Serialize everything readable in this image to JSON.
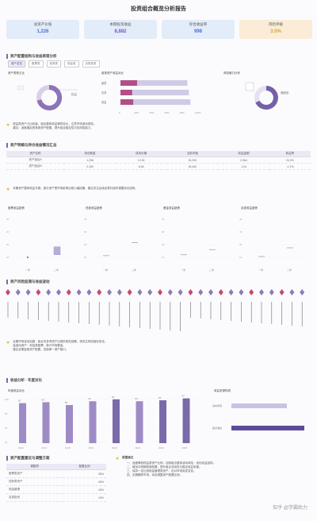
{
  "page": {
    "title": "投资组合概览分析报告"
  },
  "kpis": [
    {
      "label": "总资产价值",
      "value": "1,226",
      "color": "#4a6fd4",
      "bg": "#e3ecf9"
    },
    {
      "label": "本期投资收益",
      "value": "8,882",
      "color": "#6a5ad0",
      "bg": "#e3ecf9"
    },
    {
      "label": "综合收益率",
      "value": "998",
      "color": "#4a6fd4",
      "bg": "#e3ecf9"
    },
    {
      "label": "风险评级",
      "value": "3.5%",
      "color": "#d0a73a",
      "bg": "#fbecd7"
    }
  ],
  "section1": {
    "title": "资产配置结构与收益表现分析",
    "tabs": [
      "资产总览",
      "股票类",
      "债券类",
      "现金类",
      "另类投资"
    ],
    "donut_left": {
      "title": "资产类别占比",
      "slice_label": "权益"
    },
    "bars": {
      "title": "各类资产收益对比",
      "categories": [
        "股票",
        "债券",
        "现金"
      ],
      "series": [
        {
          "name": "收益",
          "values": [
            78,
            55,
            60
          ]
        },
        {
          "name": "目标",
          "values": [
            88,
            90,
            92
          ]
        }
      ],
      "ticks": [
        "0",
        "20%",
        "40%",
        "60%",
        "80%",
        "100%"
      ]
    },
    "donut_right": {
      "title": "风险敞口分布",
      "slice_label": "偏股型"
    },
    "tips": [
      "权益类资产占比较高，组合整体收益弹性较大，注意市场波动风险。",
      "建议：适度增加债券类资产配置，提升组合稳定性与抗风险能力。"
    ]
  },
  "section2": {
    "title": "资产明细与持仓收益情况汇总",
    "headers": [
      "资产名称",
      "持仓数量",
      "成本价格",
      "当前市值",
      "收益金额",
      "收益率"
    ],
    "rows": [
      [
        "资产组合A",
        "1,236",
        "12.30",
        "15,200",
        "2,964",
        "24.2%"
      ],
      [
        "资产组合B",
        "2,180",
        "8.46",
        "18,442",
        "-214",
        "-1.1%"
      ]
    ],
    "tip": "本期资产整体收益平稳，部分资产受市场影响出现小幅回撤，建议关注后续走势并适时调整持仓结构。",
    "mini_charts": [
      {
        "title": "股票收益趋势",
        "labels": [
          "一季",
          "二季"
        ],
        "values": [
          10,
          12
        ],
        "highlight": "高"
      },
      {
        "title": "债券收益趋势",
        "labels": [
          "一季",
          "二季"
        ],
        "values": [
          11,
          26
        ],
        "highlight": "—"
      },
      {
        "title": "基金收益趋势",
        "labels": [
          "一季",
          "二季"
        ],
        "values": [
          12,
          18
        ],
        "highlight": "—"
      },
      {
        "title": "另类收益趋势",
        "labels": [
          "一季",
          "二季"
        ],
        "values": [
          10,
          20
        ],
        "highlight": "—"
      }
    ]
  },
  "section3": {
    "title": "资产风险监测与收益波动",
    "markers_count": 30,
    "tips": [
      "近期市场波动加剧，组合内多项资产出现阶段性回撤，请关注风险指标变化。",
      "高波动资产：科技类股票、新兴市场基金。",
      "建议定期复核资产配置，控制单一资产敞口。"
    ]
  },
  "section4": {
    "title": "收益分析 · 年度对比",
    "bar_chart": {
      "title": "年度收益对比",
      "categories": [
        "2016",
        "2017",
        "2018",
        "2019",
        "2020",
        "2021",
        "2022",
        "2023"
      ],
      "values": [
        82,
        83,
        80,
        84,
        86,
        84,
        85,
        87
      ],
      "colors": [
        "#9e8bc6",
        "#9e8bc6",
        "#9e8bc6",
        "#9e8bc6",
        "#7b6aa9",
        "#9e8bc6",
        "#7b6aa9",
        "#7b6aa9"
      ],
      "ylabels": [
        "100",
        "80",
        "60",
        "40"
      ]
    },
    "hbar_chart": {
      "title": "收益来源构成",
      "categories": [
        "资本增值",
        "股息收益"
      ],
      "values": [
        70,
        92
      ]
    }
  },
  "section5": {
    "title": "资产配置建议与调整方案",
    "table_headers": [
      "调整项",
      "配置比例"
    ],
    "table_rows": [
      [
        "股票类资产",
        "35%"
      ],
      [
        "债券类资产",
        "40%"
      ],
      [
        "现金管理",
        "15%"
      ],
      [
        "另类投资",
        "10%"
      ]
    ],
    "advice_title": "配置建议",
    "advice": [
      "一、适度降低权益类资产比例，控制组合整体波动风险，优化收益结构。",
      "二、增加中短期债券配置，提升组合流动性与稳定收益来源。",
      "三、保持一定比例现金管理类资产，应对市场突发变化。",
      "四、定期跟踪市场，动态调整资产配置比例。"
    ],
    "watermark": "知乎 @学霸助力"
  }
}
